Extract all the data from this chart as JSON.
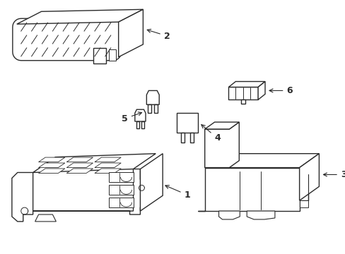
{
  "background_color": "#ffffff",
  "line_color": "#2a2a2a",
  "line_width": 1.0,
  "label_fontsize": 9,
  "fig_width": 4.89,
  "fig_height": 3.6,
  "dpi": 100
}
